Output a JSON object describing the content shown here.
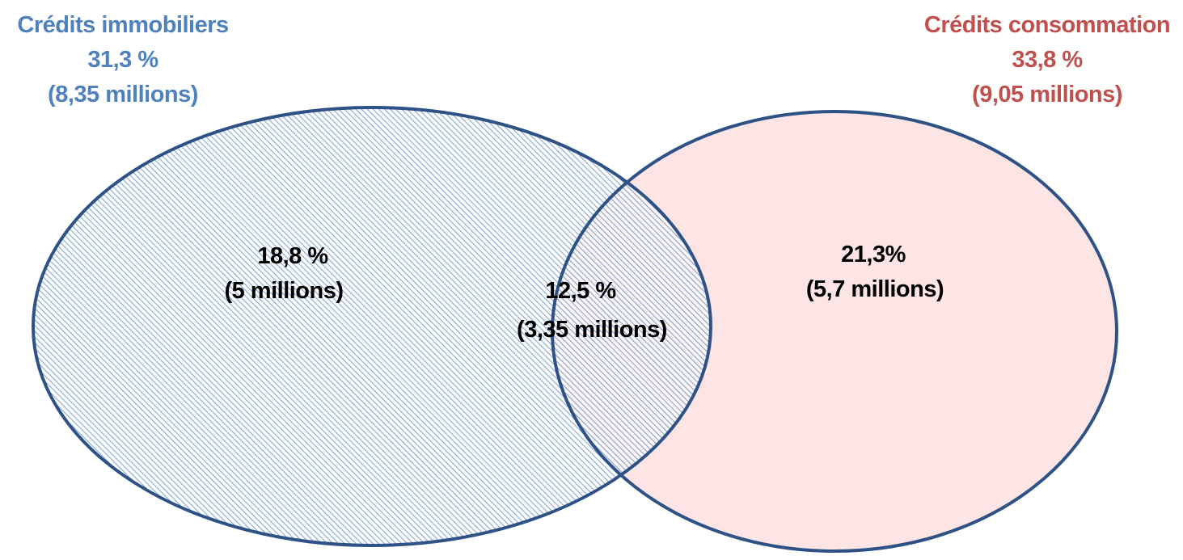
{
  "colors": {
    "immobiliers": "#4F81BD",
    "consommation": "#C0504D",
    "outline": "#2F5286",
    "consommation_fill": "#FDE5E5",
    "region_text": "#000000"
  },
  "sets": {
    "immobiliers": {
      "name": "Crédits immobiliers",
      "percent": "31,3 %",
      "count": "(8,35 millions)"
    },
    "consommation": {
      "name": "Crédits consommation",
      "percent": "33,8 %",
      "count": "(9,05 millions)"
    }
  },
  "regions": {
    "immobiliers_only": {
      "percent": "18,8 %",
      "count": "(5 millions)"
    },
    "intersection": {
      "percent": "12,5 %",
      "count": "(3,35 millions)"
    },
    "consommation_only": {
      "percent": "21,3%",
      "count": "(5,7 millions)"
    }
  }
}
